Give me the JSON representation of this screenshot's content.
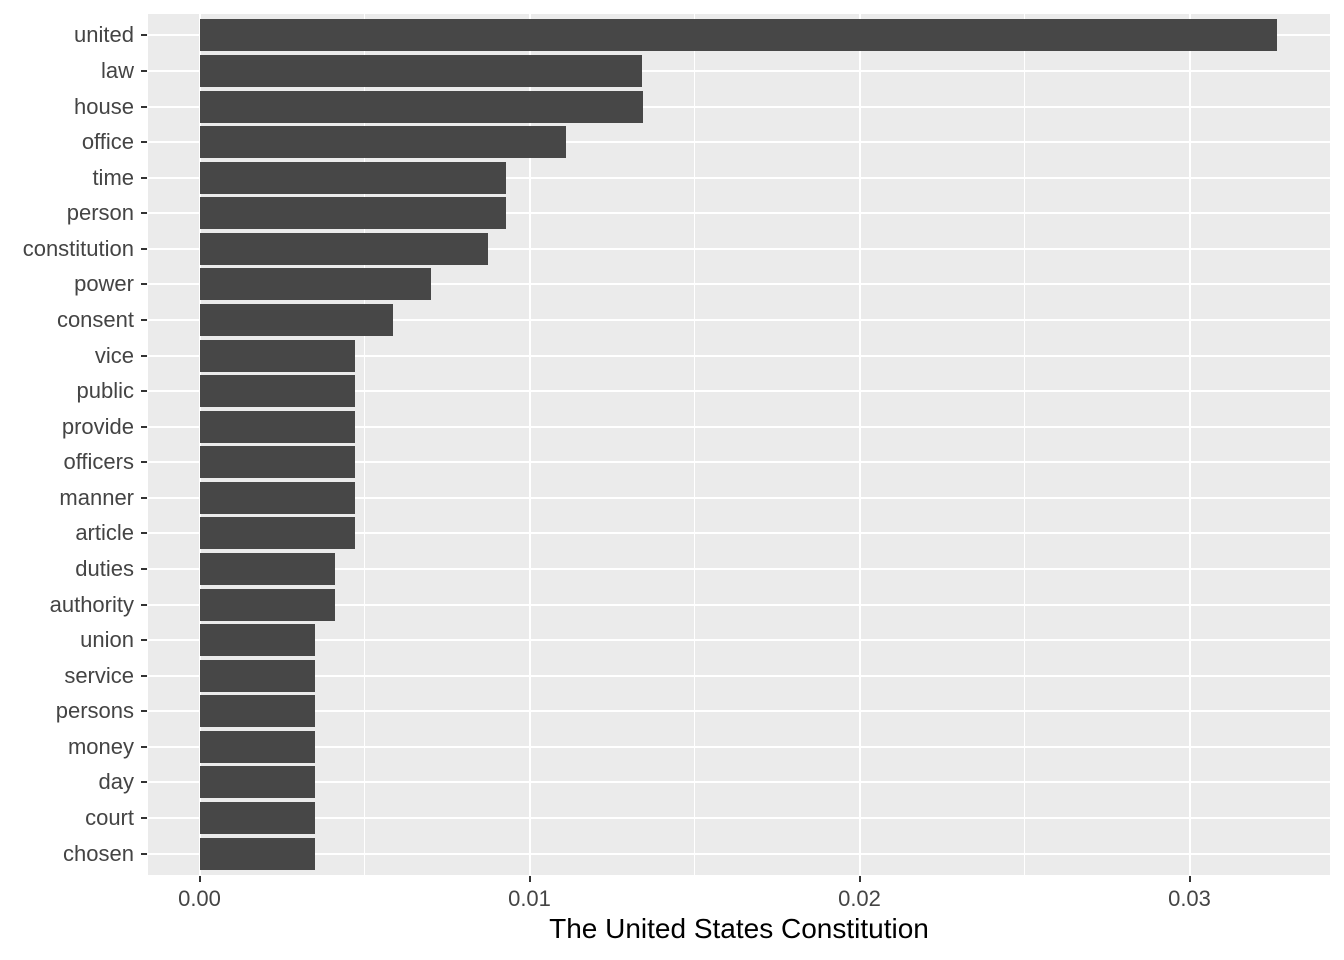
{
  "chart_data": {
    "type": "bar",
    "orientation": "horizontal",
    "title": "",
    "xlabel": "The United States Constitution",
    "ylabel": "",
    "categories": [
      "united",
      "law",
      "house",
      "office",
      "time",
      "person",
      "constitution",
      "power",
      "consent",
      "vice",
      "public",
      "provide",
      "officers",
      "manner",
      "article",
      "duties",
      "authority",
      "union",
      "service",
      "persons",
      "money",
      "day",
      "court",
      "chosen"
    ],
    "values": [
      0.03265,
      0.0134,
      0.01345,
      0.0111,
      0.0093,
      0.0093,
      0.00875,
      0.007,
      0.00585,
      0.0047,
      0.0047,
      0.0047,
      0.0047,
      0.0047,
      0.0047,
      0.0041,
      0.0041,
      0.0035,
      0.0035,
      0.0035,
      0.0035,
      0.0035,
      0.0035,
      0.0035
    ],
    "x_ticks": [
      0,
      0.01,
      0.02,
      0.03
    ],
    "x_tick_labels": [
      "0.00",
      "0.01",
      "0.02",
      "0.03"
    ],
    "x_minor_ticks": [
      0.005,
      0.015,
      0.025
    ],
    "xlim": [
      -0.00156,
      0.03428
    ],
    "grid": true,
    "legend_position": "none",
    "colors": {
      "bar": "#474747",
      "panel_background": "#EBEBEB",
      "gridline": "#FFFFFF",
      "axis_text": "#444444",
      "tick_mark": "#333333",
      "axis_title": "#000000",
      "page_background": "#FFFFFF"
    }
  }
}
